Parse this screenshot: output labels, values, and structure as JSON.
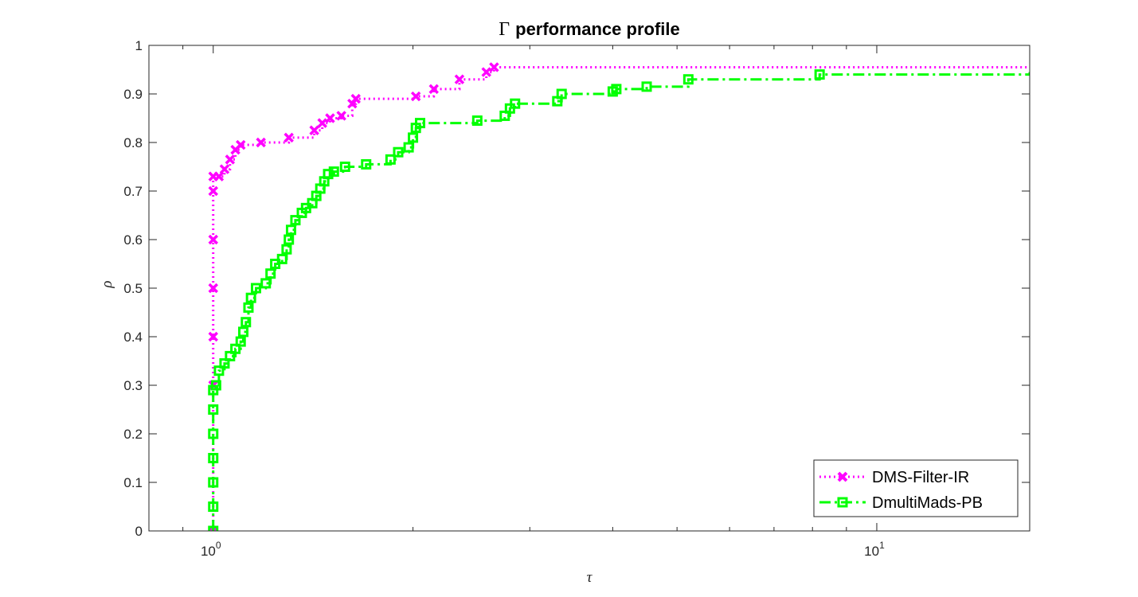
{
  "chart_data": {
    "type": "line",
    "title": "Γ performance profile",
    "title_symbol": "Γ",
    "title_text": "performance profile",
    "xlabel": "τ",
    "ylabel": "ρ",
    "xscale": "log",
    "xlim": [
      0.8,
      17
    ],
    "ylim": [
      0,
      1
    ],
    "x_ticks": [
      1,
      10
    ],
    "x_tick_labels": [
      {
        "base": "10",
        "exp": "0"
      },
      {
        "base": "10",
        "exp": "1"
      }
    ],
    "x_minor_ticks": [
      0.9,
      2,
      3,
      4,
      5,
      6,
      7,
      8,
      9
    ],
    "y_ticks": [
      0,
      0.1,
      0.2,
      0.3,
      0.4,
      0.5,
      0.6,
      0.7,
      0.8,
      0.9,
      1
    ],
    "y_tick_labels": [
      "0",
      "0.1",
      "0.2",
      "0.3",
      "0.4",
      "0.5",
      "0.6",
      "0.7",
      "0.8",
      "0.9",
      "1"
    ],
    "legend_position": "bottom-right",
    "series": [
      {
        "name": "DMS-Filter-IR",
        "color": "#ff00ff",
        "line_style": "dotted",
        "marker": "x",
        "points": [
          [
            1.0,
            0.0
          ],
          [
            1.0,
            0.3
          ],
          [
            1.0,
            0.4
          ],
          [
            1.0,
            0.5
          ],
          [
            1.0,
            0.6
          ],
          [
            1.0,
            0.7
          ],
          [
            1.0,
            0.73
          ],
          [
            1.02,
            0.73
          ],
          [
            1.04,
            0.745
          ],
          [
            1.06,
            0.765
          ],
          [
            1.08,
            0.785
          ],
          [
            1.1,
            0.795
          ],
          [
            1.18,
            0.8
          ],
          [
            1.3,
            0.81
          ],
          [
            1.42,
            0.825
          ],
          [
            1.46,
            0.84
          ],
          [
            1.5,
            0.85
          ],
          [
            1.56,
            0.855
          ],
          [
            1.62,
            0.88
          ],
          [
            1.64,
            0.89
          ],
          [
            2.02,
            0.895
          ],
          [
            2.15,
            0.91
          ],
          [
            2.35,
            0.93
          ],
          [
            2.58,
            0.945
          ],
          [
            2.65,
            0.955
          ],
          [
            17,
            0.955
          ]
        ]
      },
      {
        "name": "DmultiMads-PB",
        "color": "#00ff00",
        "line_style": "dashdot",
        "marker": "square",
        "points": [
          [
            1.0,
            0.0
          ],
          [
            1.0,
            0.05
          ],
          [
            1.0,
            0.1
          ],
          [
            1.0,
            0.15
          ],
          [
            1.0,
            0.2
          ],
          [
            1.0,
            0.25
          ],
          [
            1.0,
            0.29
          ],
          [
            1.01,
            0.3
          ],
          [
            1.02,
            0.33
          ],
          [
            1.04,
            0.345
          ],
          [
            1.06,
            0.36
          ],
          [
            1.08,
            0.375
          ],
          [
            1.1,
            0.39
          ],
          [
            1.11,
            0.41
          ],
          [
            1.12,
            0.43
          ],
          [
            1.13,
            0.46
          ],
          [
            1.14,
            0.48
          ],
          [
            1.16,
            0.5
          ],
          [
            1.2,
            0.51
          ],
          [
            1.22,
            0.53
          ],
          [
            1.24,
            0.55
          ],
          [
            1.27,
            0.56
          ],
          [
            1.29,
            0.58
          ],
          [
            1.3,
            0.6
          ],
          [
            1.31,
            0.62
          ],
          [
            1.33,
            0.64
          ],
          [
            1.36,
            0.655
          ],
          [
            1.38,
            0.665
          ],
          [
            1.41,
            0.675
          ],
          [
            1.43,
            0.69
          ],
          [
            1.45,
            0.705
          ],
          [
            1.47,
            0.72
          ],
          [
            1.49,
            0.735
          ],
          [
            1.52,
            0.74
          ],
          [
            1.58,
            0.75
          ],
          [
            1.7,
            0.755
          ],
          [
            1.85,
            0.765
          ],
          [
            1.9,
            0.78
          ],
          [
            1.97,
            0.79
          ],
          [
            2.0,
            0.81
          ],
          [
            2.02,
            0.83
          ],
          [
            2.05,
            0.84
          ],
          [
            2.5,
            0.845
          ],
          [
            2.75,
            0.855
          ],
          [
            2.8,
            0.87
          ],
          [
            2.85,
            0.88
          ],
          [
            3.3,
            0.885
          ],
          [
            3.35,
            0.9
          ],
          [
            4.0,
            0.905
          ],
          [
            4.05,
            0.91
          ],
          [
            4.5,
            0.915
          ],
          [
            5.2,
            0.93
          ],
          [
            8.2,
            0.94
          ],
          [
            17,
            0.945
          ]
        ]
      }
    ]
  }
}
